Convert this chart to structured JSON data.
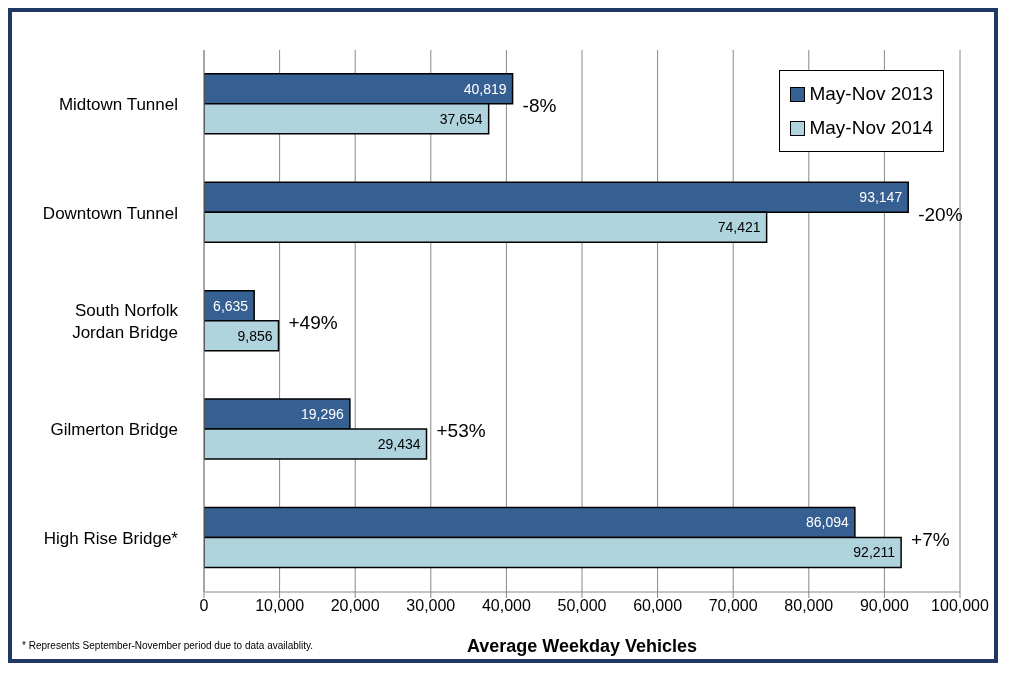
{
  "chart_data": {
    "type": "bar",
    "orientation": "horizontal",
    "xlabel": "Average Weekday Vehicles",
    "categories": [
      "Midtown Tunnel",
      "Downtown Tunnel",
      "South Norfolk Jordan Bridge",
      "Gilmerton Bridge",
      "High Rise Bridge*"
    ],
    "series": [
      {
        "name": "May-Nov 2013",
        "color": "#376092",
        "values": [
          40819,
          93147,
          6635,
          19296,
          86094
        ],
        "value_labels": [
          "40,819",
          "93,147",
          "6,635",
          "19,296",
          "86,094"
        ]
      },
      {
        "name": "May-Nov 2014",
        "color": "#b0d4de",
        "values": [
          37654,
          74421,
          9856,
          29434,
          92211
        ],
        "value_labels": [
          "37,654",
          "74,421",
          "9,856",
          "29,434",
          "92,211"
        ]
      }
    ],
    "xlim": [
      0,
      100000
    ],
    "xticks": [
      0,
      {
        "value": 10000,
        "label": "10,000"
      },
      {
        "value": 20000,
        "label": "20,000"
      },
      {
        "value": 30000,
        "label": "30,000"
      },
      {
        "value": 40000,
        "label": "40,000"
      },
      {
        "value": 50000,
        "label": "50,000"
      },
      {
        "value": 60000,
        "label": "60,000"
      },
      {
        "value": 70000,
        "label": "70,000"
      },
      {
        "value": 80000,
        "label": "80,000"
      },
      {
        "value": 90000,
        "label": "90,000"
      },
      {
        "value": 100000,
        "label": "100,000"
      }
    ],
    "grid": "x",
    "legend": "top right",
    "annotations": [
      "-8%",
      "-20%",
      "+49%",
      "+53%",
      "+7%",
      "* Represents September-November period due to data availablity."
    ]
  }
}
